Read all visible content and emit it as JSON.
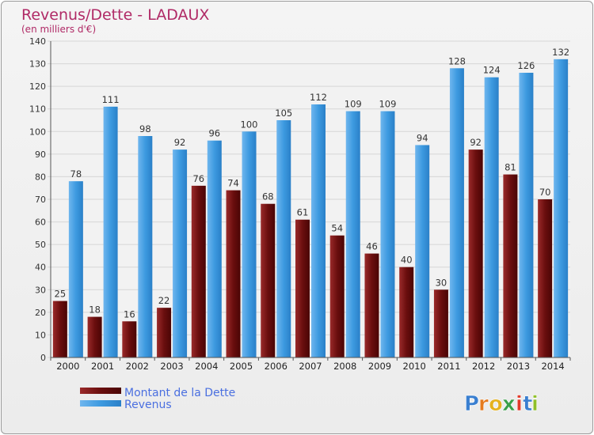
{
  "chart_data": {
    "type": "bar",
    "title": "Revenus/Dette - LADAUX",
    "subtitle": "(en milliers d'€)",
    "categories": [
      "2000",
      "2001",
      "2002",
      "2003",
      "2004",
      "2005",
      "2006",
      "2007",
      "2008",
      "2009",
      "2010",
      "2011",
      "2012",
      "2013",
      "2014"
    ],
    "series": [
      {
        "name": "Montant de la Dette",
        "color": "#7a1414",
        "values": [
          25,
          18,
          16,
          22,
          76,
          74,
          68,
          61,
          54,
          46,
          40,
          30,
          92,
          81,
          70
        ]
      },
      {
        "name": "Revenus",
        "color": "#3d9ae0",
        "values": [
          78,
          111,
          98,
          92,
          96,
          100,
          105,
          112,
          109,
          109,
          94,
          128,
          124,
          126,
          132
        ]
      }
    ],
    "ylim": [
      0,
      140
    ],
    "yticks": [
      0,
      10,
      20,
      30,
      40,
      50,
      60,
      70,
      80,
      90,
      100,
      110,
      120,
      130,
      140
    ],
    "grid": true,
    "legend_position": "bottom-left"
  },
  "branding": {
    "logo_letters": [
      "P",
      "r",
      "o",
      "x",
      "i",
      "t",
      "i"
    ],
    "logo_colors": [
      "#3a7fd0",
      "#e57a1e",
      "#e5b21e",
      "#3aa04a",
      "#e23a2a",
      "#3a7fd0",
      "#8fbf2a"
    ]
  }
}
